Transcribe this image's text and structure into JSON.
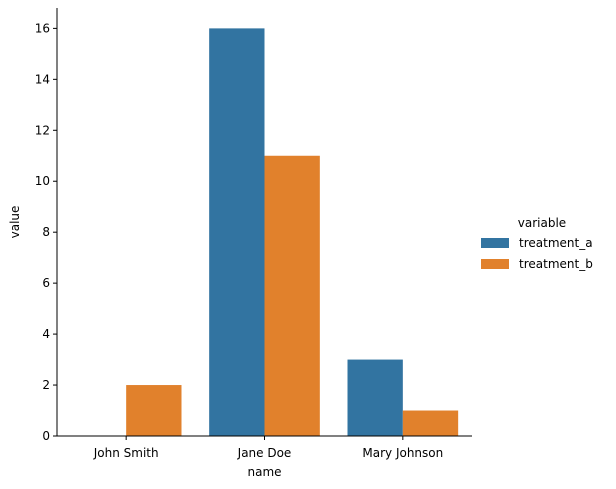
{
  "chart_data": {
    "type": "bar",
    "categories": [
      "John Smith",
      "Jane Doe",
      "Mary Johnson"
    ],
    "series": [
      {
        "name": "treatment_a",
        "values": [
          0,
          16,
          3
        ],
        "color": "#3274a1"
      },
      {
        "name": "treatment_b",
        "values": [
          2,
          11,
          1
        ],
        "color": "#e1812c"
      }
    ],
    "xlabel": "name",
    "ylabel": "value",
    "ylim": [
      0,
      16.8
    ],
    "yticks": [
      0,
      2,
      4,
      6,
      8,
      10,
      12,
      14,
      16
    ],
    "grid": false,
    "legend": {
      "title": "variable",
      "placement": "right"
    }
  }
}
